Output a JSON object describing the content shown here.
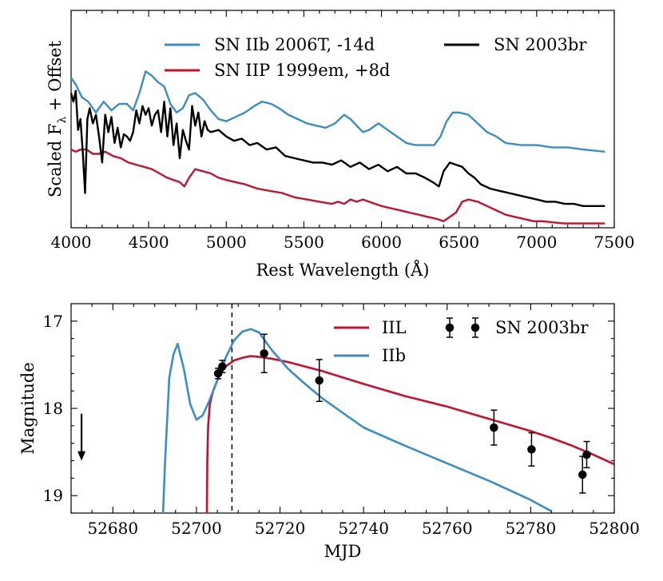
{
  "chart_data": [
    {
      "type": "line",
      "title": "",
      "xlabel": "Rest Wavelength (Å)",
      "ylabel_main": "Scaled F",
      "ylabel_sub": "λ",
      "ylabel_tail": " + Offset",
      "xlim": [
        4000,
        7500
      ],
      "ylim": [
        0,
        1
      ],
      "xticks": [
        4000,
        4500,
        5000,
        5500,
        6000,
        6500,
        7000,
        7500
      ],
      "yticks": [],
      "legend": "top",
      "series": [
        {
          "name": "SN IIb 2006T, -14d",
          "color": "#3a8ec3",
          "x": [
            4000,
            4030,
            4070,
            4110,
            4160,
            4210,
            4260,
            4310,
            4360,
            4400,
            4440,
            4480,
            4520,
            4560,
            4600,
            4640,
            4680,
            4720,
            4760,
            4800,
            4850,
            4900,
            4950,
            5000,
            5060,
            5120,
            5180,
            5230,
            5290,
            5340,
            5400,
            5460,
            5520,
            5580,
            5640,
            5700,
            5760,
            5800,
            5840,
            5880,
            5920,
            5980,
            6040,
            6100,
            6160,
            6220,
            6280,
            6340,
            6380,
            6420,
            6460,
            6500,
            6560,
            6620,
            6680,
            6740,
            6800,
            6900,
            7000,
            7100,
            7200,
            7300,
            7440
          ],
          "values": [
            0.69,
            0.66,
            0.6,
            0.58,
            0.53,
            0.58,
            0.54,
            0.57,
            0.57,
            0.54,
            0.62,
            0.72,
            0.7,
            0.67,
            0.65,
            0.57,
            0.53,
            0.55,
            0.61,
            0.62,
            0.59,
            0.54,
            0.5,
            0.49,
            0.51,
            0.53,
            0.56,
            0.58,
            0.57,
            0.55,
            0.52,
            0.5,
            0.48,
            0.47,
            0.46,
            0.48,
            0.52,
            0.5,
            0.47,
            0.44,
            0.45,
            0.48,
            0.45,
            0.42,
            0.39,
            0.38,
            0.38,
            0.38,
            0.42,
            0.49,
            0.53,
            0.53,
            0.52,
            0.48,
            0.44,
            0.42,
            0.39,
            0.38,
            0.38,
            0.37,
            0.37,
            0.36,
            0.35
          ]
        },
        {
          "name": "SN IIP 1999em, +8d",
          "color": "#c8102e",
          "x": [
            4000,
            4030,
            4060,
            4100,
            4140,
            4180,
            4220,
            4270,
            4320,
            4370,
            4420,
            4470,
            4520,
            4570,
            4620,
            4660,
            4700,
            4730,
            4760,
            4800,
            4850,
            4900,
            4950,
            5000,
            5060,
            5120,
            5200,
            5280,
            5360,
            5440,
            5520,
            5600,
            5680,
            5720,
            5760,
            5800,
            5840,
            5880,
            5920,
            5960,
            6000,
            6060,
            6120,
            6180,
            6240,
            6300,
            6360,
            6400,
            6440,
            6480,
            6520,
            6560,
            6620,
            6680,
            6740,
            6800,
            6860,
            6920,
            6980,
            7040,
            7100,
            7180,
            7260,
            7340,
            7440
          ],
          "values": [
            0.36,
            0.35,
            0.36,
            0.36,
            0.34,
            0.34,
            0.35,
            0.33,
            0.32,
            0.3,
            0.29,
            0.28,
            0.27,
            0.25,
            0.23,
            0.22,
            0.21,
            0.19,
            0.23,
            0.27,
            0.26,
            0.25,
            0.23,
            0.22,
            0.21,
            0.2,
            0.18,
            0.17,
            0.16,
            0.14,
            0.13,
            0.12,
            0.11,
            0.12,
            0.11,
            0.13,
            0.12,
            0.13,
            0.12,
            0.11,
            0.1,
            0.09,
            0.08,
            0.07,
            0.06,
            0.05,
            0.04,
            0.03,
            0.05,
            0.07,
            0.12,
            0.13,
            0.12,
            0.1,
            0.08,
            0.06,
            0.05,
            0.04,
            0.03,
            0.03,
            0.025,
            0.02,
            0.02,
            0.02,
            0.02
          ]
        },
        {
          "name": "SN 2003br",
          "color": "#000000",
          "x": [
            4000,
            4015,
            4030,
            4045,
            4060,
            4075,
            4090,
            4105,
            4120,
            4140,
            4160,
            4180,
            4200,
            4220,
            4240,
            4260,
            4280,
            4300,
            4320,
            4340,
            4360,
            4380,
            4400,
            4420,
            4440,
            4460,
            4480,
            4500,
            4520,
            4540,
            4560,
            4580,
            4600,
            4620,
            4640,
            4660,
            4680,
            4700,
            4720,
            4740,
            4760,
            4780,
            4800,
            4820,
            4840,
            4860,
            4880,
            4900,
            4950,
            5000,
            5050,
            5100,
            5150,
            5200,
            5260,
            5320,
            5380,
            5440,
            5500,
            5560,
            5620,
            5680,
            5740,
            5800,
            5860,
            5920,
            5980,
            6040,
            6100,
            6160,
            6220,
            6280,
            6330,
            6370,
            6400,
            6440,
            6480,
            6520,
            6560,
            6600,
            6640,
            6700,
            6760,
            6820,
            6880,
            6940,
            7000,
            7060,
            7120,
            7180,
            7240,
            7300,
            7360,
            7440
          ],
          "values": [
            0.62,
            0.58,
            0.63,
            0.45,
            0.5,
            0.35,
            0.16,
            0.5,
            0.55,
            0.48,
            0.52,
            0.42,
            0.3,
            0.52,
            0.44,
            0.51,
            0.39,
            0.46,
            0.37,
            0.43,
            0.42,
            0.4,
            0.44,
            0.54,
            0.48,
            0.56,
            0.52,
            0.55,
            0.47,
            0.52,
            0.54,
            0.44,
            0.58,
            0.42,
            0.55,
            0.38,
            0.48,
            0.32,
            0.45,
            0.4,
            0.36,
            0.56,
            0.47,
            0.53,
            0.42,
            0.49,
            0.45,
            0.44,
            0.45,
            0.42,
            0.4,
            0.41,
            0.38,
            0.39,
            0.36,
            0.37,
            0.33,
            0.32,
            0.31,
            0.3,
            0.3,
            0.29,
            0.31,
            0.28,
            0.3,
            0.27,
            0.29,
            0.26,
            0.28,
            0.25,
            0.25,
            0.23,
            0.21,
            0.19,
            0.26,
            0.3,
            0.29,
            0.28,
            0.25,
            0.23,
            0.2,
            0.18,
            0.17,
            0.16,
            0.15,
            0.14,
            0.13,
            0.12,
            0.12,
            0.11,
            0.11,
            0.1,
            0.1,
            0.1
          ]
        }
      ]
    },
    {
      "type": "line",
      "title": "",
      "xlabel": "MJD",
      "ylabel": "Magnitude",
      "xlim": [
        52670,
        52800
      ],
      "ylim": [
        19.2,
        16.8
      ],
      "xticks": [
        52680,
        52700,
        52720,
        52740,
        52760,
        52780,
        52800
      ],
      "yticks": [
        17,
        18,
        19
      ],
      "legend": "top-right",
      "vline_x": 52708.5,
      "upper_limit": {
        "x": 52672.5,
        "y": 18.4
      },
      "series": [
        {
          "name": "IIL",
          "color": "#c8102e",
          "x": [
            52702.5,
            52702.6,
            52702.8,
            52703.2,
            52704,
            52705.5,
            52707,
            52709,
            52711,
            52713,
            52715,
            52718,
            52722,
            52726,
            52730,
            52740,
            52750,
            52760,
            52770,
            52775,
            52780,
            52785,
            52790,
            52795,
            52800
          ],
          "values": [
            19.2,
            18.6,
            18.2,
            17.95,
            17.8,
            17.62,
            17.52,
            17.45,
            17.42,
            17.4,
            17.41,
            17.43,
            17.47,
            17.52,
            17.57,
            17.72,
            17.86,
            17.98,
            18.12,
            18.19,
            18.26,
            18.34,
            18.43,
            18.53,
            18.64
          ]
        },
        {
          "name": "IIb",
          "color": "#3a8ec3",
          "x": [
            52692,
            52692.5,
            52693.5,
            52694.5,
            52695.5,
            52697,
            52698.5,
            52700,
            52701.5,
            52703,
            52705,
            52707,
            52709,
            52711,
            52713,
            52715,
            52718,
            52722,
            52726,
            52730,
            52735,
            52740,
            52750,
            52760,
            52770,
            52780,
            52785
          ],
          "values": [
            19.2,
            18.6,
            17.65,
            17.38,
            17.26,
            17.55,
            17.95,
            18.13,
            18.08,
            17.92,
            17.68,
            17.42,
            17.22,
            17.12,
            17.09,
            17.13,
            17.33,
            17.55,
            17.72,
            17.88,
            18.05,
            18.22,
            18.43,
            18.63,
            18.83,
            19.05,
            19.18
          ]
        },
        {
          "name": "SN 2003br",
          "color": "#000000",
          "points": [
            {
              "x": 52705.2,
              "y": 17.6,
              "err": 0.06
            },
            {
              "x": 52706.2,
              "y": 17.52,
              "err": 0.07
            },
            {
              "x": 52716.2,
              "y": 17.37,
              "err": 0.22
            },
            {
              "x": 52729.4,
              "y": 17.68,
              "err": 0.24
            },
            {
              "x": 52771.2,
              "y": 18.22,
              "err": 0.2
            },
            {
              "x": 52780.2,
              "y": 18.47,
              "err": 0.19
            },
            {
              "x": 52792.4,
              "y": 18.76,
              "err": 0.21
            },
            {
              "x": 52793.4,
              "y": 18.53,
              "err": 0.15
            }
          ]
        }
      ]
    }
  ]
}
